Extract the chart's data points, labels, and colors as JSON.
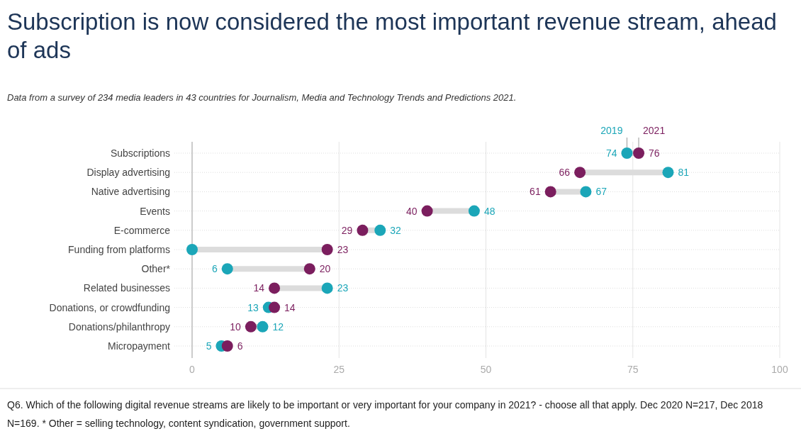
{
  "chart_data": {
    "type": "scatter",
    "orientation": "horizontal",
    "title": "Subscription is now considered the most important revenue stream, ahead of ads",
    "subtitle": "Data from a survey of 234 media leaders in 43 countries for Journalism, Media and Technology Trends and Predictions 2021.",
    "categories": [
      "Subscriptions",
      "Display advertising",
      "Native advertising",
      "Events",
      "E-commerce",
      "Funding from platforms",
      "Other*",
      "Related businesses",
      "Donations, or crowdfunding",
      "Donations/philanthropy",
      "Micropayment"
    ],
    "series": [
      {
        "name": "2019",
        "color": "#1ba6b8",
        "values": [
          74,
          81,
          67,
          48,
          32,
          0,
          6,
          23,
          13,
          12,
          5
        ],
        "value_labels": [
          "74",
          "81",
          "67",
          "48",
          "32",
          null,
          "6",
          "23",
          "13",
          "12",
          "5"
        ]
      },
      {
        "name": "2021",
        "color": "#7b1e5e",
        "values": [
          76,
          66,
          61,
          40,
          29,
          23,
          20,
          14,
          14,
          10,
          6
        ],
        "value_labels": [
          "76",
          "66",
          "61",
          "40",
          "29",
          "23",
          "20",
          "14",
          "14",
          "10",
          "6"
        ]
      }
    ],
    "xlim": [
      0,
      100
    ],
    "xticks": [
      0,
      25,
      50,
      75,
      100
    ],
    "grid": true,
    "marker": "circle",
    "annotations": [
      "Q6. Which of the following digital revenue streams are likely to be important or very important for your company in 2021? - choose all that apply. Dec 2020 N=217, Dec 2018 N=169. * Other = selling technology, content syndication, government support."
    ]
  }
}
